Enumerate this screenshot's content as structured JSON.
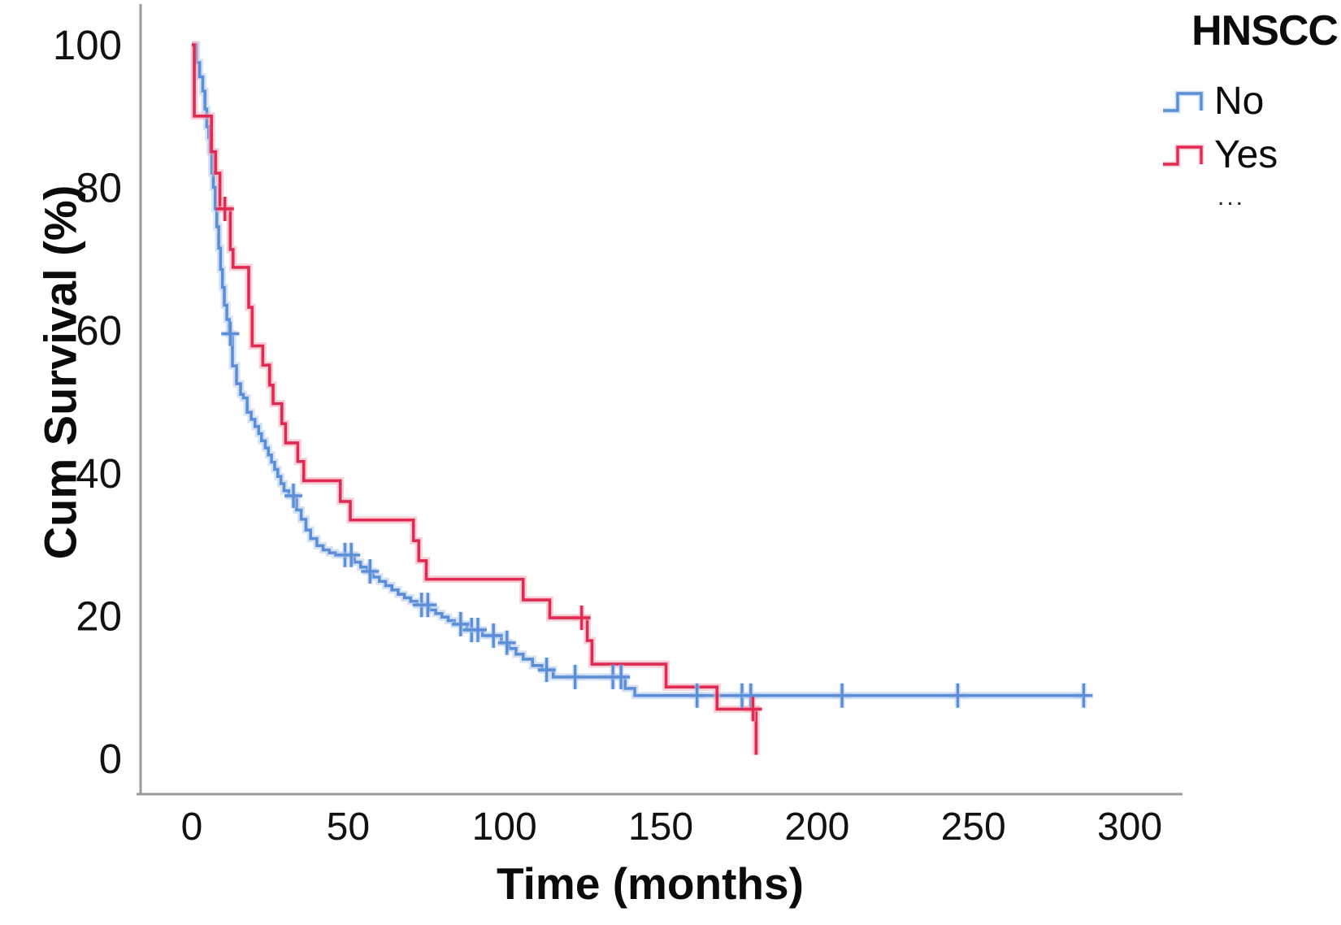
{
  "figure": {
    "y_axis_title": "Cum Survival (%)",
    "x_axis_title": "Time (months)"
  },
  "legend": {
    "title": "HNSCC",
    "ellipsis": "...",
    "items": [
      {
        "label": "No",
        "color": "#5b8ed6",
        "halo": "#b3cbee"
      },
      {
        "label": "Yes",
        "color": "#e02a52",
        "halo": "#f3a6b6"
      }
    ]
  },
  "chart_data": {
    "type": "line",
    "subtype": "kaplan-meier-step",
    "title": "",
    "xlabel": "Time (months)",
    "ylabel": "Cum Survival (%)",
    "xlim": [
      0,
      300
    ],
    "ylim": [
      0,
      100
    ],
    "x_ticks": [
      0,
      50,
      100,
      150,
      200,
      250,
      300
    ],
    "y_ticks": [
      0,
      20,
      40,
      60,
      80,
      100
    ],
    "grid": false,
    "legend_position": "top-right",
    "axis_color": "#9a9a9a",
    "series": [
      {
        "name": "No",
        "color": "#5b8ed6",
        "halo": "#b3cbee",
        "points": [
          [
            0,
            100
          ],
          [
            1.5,
            97.5
          ],
          [
            2.5,
            95.5
          ],
          [
            3.5,
            93.5
          ],
          [
            4.2,
            91
          ],
          [
            4.8,
            88.5
          ],
          [
            5.4,
            87
          ],
          [
            5.9,
            85
          ],
          [
            6.4,
            82
          ],
          [
            6.9,
            80
          ],
          [
            7.5,
            77
          ],
          [
            8,
            74.5
          ],
          [
            8.6,
            71.5
          ],
          [
            9.2,
            68.5
          ],
          [
            9.8,
            66
          ],
          [
            10.4,
            63.5
          ],
          [
            11.2,
            61.5
          ],
          [
            12,
            59.5
          ],
          [
            13,
            55
          ],
          [
            14.3,
            52.5
          ],
          [
            15.6,
            51
          ],
          [
            16.5,
            50.5
          ],
          [
            17.7,
            48.5
          ],
          [
            19,
            47.5
          ],
          [
            20.2,
            46.5
          ],
          [
            21.4,
            45.5
          ],
          [
            22.3,
            44.5
          ],
          [
            23.5,
            43.5
          ],
          [
            24.5,
            42.5
          ],
          [
            25.5,
            41.5
          ],
          [
            26.5,
            40.5
          ],
          [
            27.5,
            39.5
          ],
          [
            28.5,
            38.5
          ],
          [
            29.5,
            37.5
          ],
          [
            31,
            36.8
          ],
          [
            33.5,
            34.8
          ],
          [
            35,
            33.5
          ],
          [
            36.5,
            32
          ],
          [
            38,
            30.8
          ],
          [
            40,
            29.8
          ],
          [
            42,
            29.2
          ],
          [
            44,
            28.8
          ],
          [
            46,
            28.5
          ],
          [
            52,
            27.5
          ],
          [
            54,
            26.8
          ],
          [
            56,
            26.2
          ],
          [
            58,
            25.4
          ],
          [
            60,
            24.8
          ],
          [
            62,
            24.2
          ],
          [
            64,
            23.6
          ],
          [
            66,
            23
          ],
          [
            68,
            22.5
          ],
          [
            70,
            22
          ],
          [
            72,
            21.5
          ],
          [
            76,
            20.8
          ],
          [
            78,
            20.3
          ],
          [
            80,
            19.8
          ],
          [
            82,
            19.3
          ],
          [
            84,
            18.8
          ],
          [
            88,
            18
          ],
          [
            93,
            17.2
          ],
          [
            99,
            16.2
          ],
          [
            101.5,
            15.4
          ],
          [
            103.7,
            14.6
          ],
          [
            106,
            13.9
          ],
          [
            109,
            13
          ],
          [
            112,
            12.4
          ],
          [
            115.6,
            11.4
          ],
          [
            138.6,
            9.8
          ],
          [
            141.7,
            8.8
          ],
          [
            285.3,
            8.8
          ]
        ],
        "censors": [
          [
            12.3,
            59.5
          ],
          [
            32.5,
            36.8
          ],
          [
            49,
            28.5
          ],
          [
            51,
            28.5
          ],
          [
            57,
            26.2
          ],
          [
            73.5,
            21.5
          ],
          [
            75.5,
            21.5
          ],
          [
            86,
            18.8
          ],
          [
            89.5,
            18
          ],
          [
            91.5,
            18
          ],
          [
            96.5,
            17.2
          ],
          [
            100.8,
            16.2
          ],
          [
            113.5,
            12.4
          ],
          [
            122.6,
            11.4
          ],
          [
            134.7,
            11.4
          ],
          [
            137.3,
            11.4
          ],
          [
            161.6,
            8.8
          ],
          [
            176,
            8.8
          ],
          [
            178.8,
            8.8
          ],
          [
            208,
            8.8
          ],
          [
            245,
            8.8
          ],
          [
            285.3,
            8.8
          ]
        ]
      },
      {
        "name": "Yes",
        "color": "#e02a52",
        "halo": "#f3a6b6",
        "points": [
          [
            0,
            100
          ],
          [
            0.8,
            90
          ],
          [
            6.3,
            85
          ],
          [
            7.6,
            82
          ],
          [
            9,
            77
          ],
          [
            12.3,
            71.3
          ],
          [
            13.2,
            68.8
          ],
          [
            18.2,
            63.2
          ],
          [
            19.3,
            57.8
          ],
          [
            22.7,
            55.1
          ],
          [
            24.9,
            52.3
          ],
          [
            26,
            49.7
          ],
          [
            28.8,
            46.9
          ],
          [
            30,
            44.2
          ],
          [
            33.9,
            41.6
          ],
          [
            35.8,
            38.9
          ],
          [
            47.5,
            36
          ],
          [
            50.7,
            33.4
          ],
          [
            70.9,
            30.5
          ],
          [
            72.6,
            27.7
          ],
          [
            75,
            25.1
          ],
          [
            106,
            22.2
          ],
          [
            114.5,
            19.7
          ],
          [
            126.5,
            16.5
          ],
          [
            128,
            13.2
          ],
          [
            151.7,
            10
          ],
          [
            168,
            6.9
          ],
          [
            180.5,
            0.5
          ]
        ],
        "censors": [
          [
            10.6,
            77
          ],
          [
            124.7,
            19.7
          ],
          [
            179.5,
            6.9
          ]
        ]
      }
    ]
  }
}
